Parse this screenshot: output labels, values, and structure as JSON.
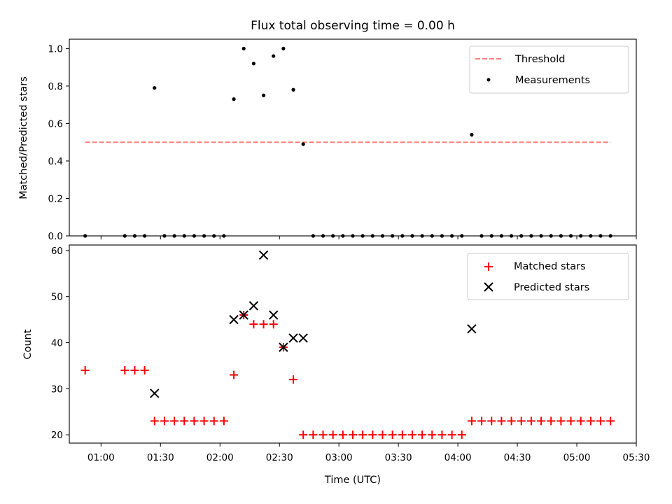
{
  "figure_title": "Flux total observing time = 0.00 h",
  "colors": {
    "threshold": "#ff7f7f",
    "measurements": "#000000",
    "matched": "#ff0000",
    "predicted": "#000000"
  },
  "chart_data": [
    {
      "type": "scatter",
      "title": "Flux total observing time = 0.00 h",
      "xlabel": "",
      "ylabel": "Matched/Predicted stars",
      "xlim": [
        "00:44",
        "05:30"
      ],
      "ylim": [
        0,
        1.05
      ],
      "x_ticks": [
        "01:00",
        "01:30",
        "02:00",
        "02:30",
        "03:00",
        "03:30",
        "04:00",
        "04:30",
        "05:00",
        "05:30"
      ],
      "y_ticks": [
        "0.0",
        "0.2",
        "0.4",
        "0.6",
        "0.8",
        "1.0"
      ],
      "legend_position": "top-right",
      "threshold": {
        "name": "Threshold",
        "value": 0.5,
        "x_start": "00:52",
        "x_end": "05:17",
        "style": "dashed"
      },
      "series": [
        {
          "name": "Measurements",
          "x": [
            "00:52",
            "01:12",
            "01:17",
            "01:22",
            "01:27",
            "01:32",
            "01:37",
            "01:42",
            "01:47",
            "01:52",
            "01:57",
            "02:02",
            "02:07",
            "02:12",
            "02:17",
            "02:22",
            "02:27",
            "02:32",
            "02:37",
            "02:42",
            "02:47",
            "02:52",
            "02:57",
            "03:02",
            "03:07",
            "03:12",
            "03:17",
            "03:22",
            "03:27",
            "03:32",
            "03:37",
            "03:42",
            "03:47",
            "03:52",
            "03:57",
            "04:02",
            "04:07",
            "04:12",
            "04:17",
            "04:22",
            "04:27",
            "04:32",
            "04:37",
            "04:42",
            "04:47",
            "04:52",
            "04:57",
            "05:02",
            "05:07",
            "05:12",
            "05:17"
          ],
          "y": [
            0,
            0,
            0,
            0,
            0.79,
            0,
            0,
            0,
            0,
            0,
            0,
            0,
            0.73,
            1.0,
            0.92,
            0.75,
            0.96,
            1.0,
            0.78,
            0.49,
            0,
            0,
            0,
            0,
            0,
            0,
            0,
            0,
            0,
            0,
            0,
            0,
            0,
            0,
            0,
            0,
            0.54,
            0,
            0,
            0,
            0,
            0,
            0,
            0,
            0,
            0,
            0,
            0,
            0,
            0,
            0
          ]
        }
      ]
    },
    {
      "type": "scatter",
      "title": "",
      "xlabel": "Time (UTC)",
      "ylabel": "Count",
      "xlim": [
        "00:44",
        "05:30"
      ],
      "ylim": [
        18.2,
        61.2
      ],
      "x_ticks": [
        "01:00",
        "01:30",
        "02:00",
        "02:30",
        "03:00",
        "03:30",
        "04:00",
        "04:30",
        "05:00",
        "05:30"
      ],
      "y_ticks": [
        "20",
        "30",
        "40",
        "50",
        "60"
      ],
      "legend_position": "top-right",
      "series": [
        {
          "name": "Matched stars",
          "marker": "plus",
          "x": [
            "00:52",
            "01:12",
            "01:17",
            "01:22",
            "01:27",
            "01:32",
            "01:37",
            "01:42",
            "01:47",
            "01:52",
            "01:57",
            "02:02",
            "02:07",
            "02:12",
            "02:17",
            "02:22",
            "02:27",
            "02:32",
            "02:37",
            "02:42",
            "02:47",
            "02:52",
            "02:57",
            "03:02",
            "03:07",
            "03:12",
            "03:17",
            "03:22",
            "03:27",
            "03:32",
            "03:37",
            "03:42",
            "03:47",
            "03:52",
            "03:57",
            "04:02",
            "04:07",
            "04:12",
            "04:17",
            "04:22",
            "04:27",
            "04:32",
            "04:37",
            "04:42",
            "04:47",
            "04:52",
            "04:57",
            "05:02",
            "05:07",
            "05:12",
            "05:17"
          ],
          "y": [
            34,
            34,
            34,
            34,
            23,
            23,
            23,
            23,
            23,
            23,
            23,
            23,
            33,
            46,
            44,
            44,
            44,
            39,
            32,
            20,
            20,
            20,
            20,
            20,
            20,
            20,
            20,
            20,
            20,
            20,
            20,
            20,
            20,
            20,
            20,
            20,
            23,
            23,
            23,
            23,
            23,
            23,
            23,
            23,
            23,
            23,
            23,
            23,
            23,
            23,
            23
          ]
        },
        {
          "name": "Predicted stars",
          "marker": "x",
          "x": [
            "01:27",
            "02:07",
            "02:12",
            "02:17",
            "02:22",
            "02:27",
            "02:32",
            "02:37",
            "02:42",
            "04:07"
          ],
          "y": [
            29,
            45,
            46,
            48,
            59,
            46,
            39,
            41,
            41,
            43
          ]
        }
      ]
    }
  ]
}
